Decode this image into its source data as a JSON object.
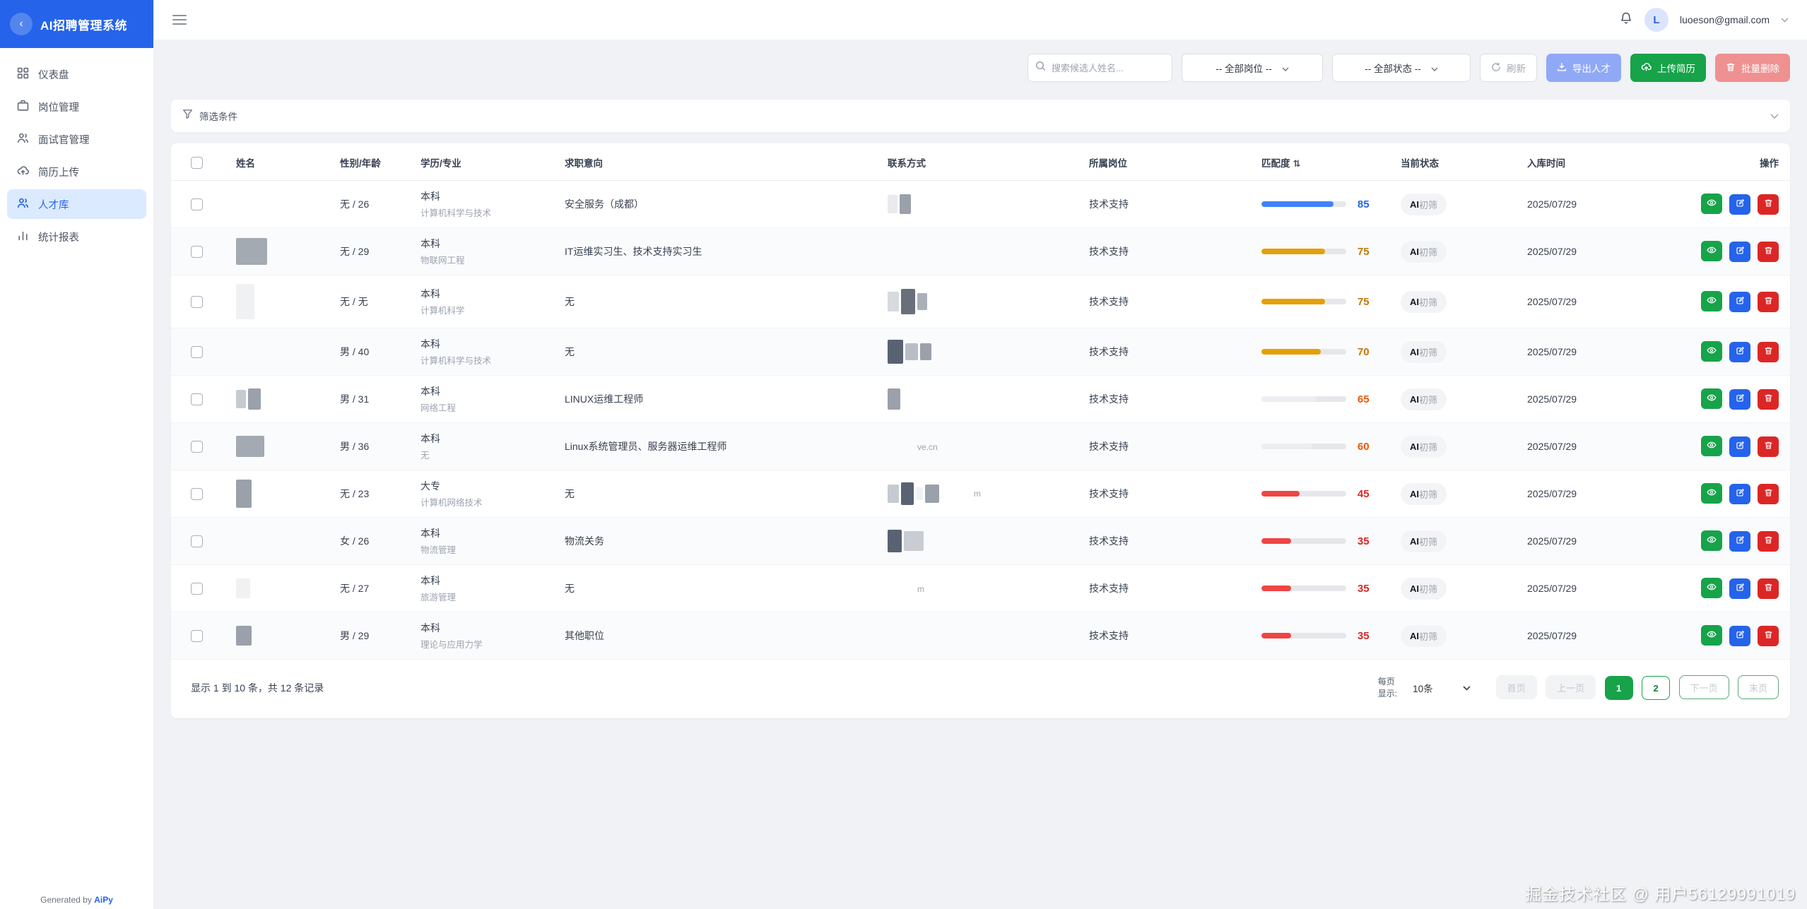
{
  "app": {
    "title": "AI招聘管理系统"
  },
  "topbar": {
    "avatar_initial": "L",
    "email": "luoeson@gmail.com"
  },
  "sidebar": {
    "items": [
      {
        "label": "仪表盘"
      },
      {
        "label": "岗位管理"
      },
      {
        "label": "面试官管理"
      },
      {
        "label": "简历上传"
      },
      {
        "label": "人才库",
        "active": true
      },
      {
        "label": "统计报表"
      }
    ],
    "footer_prefix": "Generated by ",
    "footer_link": "AiPy"
  },
  "toolbar": {
    "search_placeholder": "搜索候选人姓名...",
    "job_filter": "-- 全部岗位 --",
    "status_filter": "-- 全部状态 --",
    "refresh": "刷新",
    "export": "导出人才",
    "upload": "上传简历",
    "batch_delete": "批量删除"
  },
  "filter_bar": {
    "label": "筛选条件"
  },
  "table": {
    "columns": [
      "姓名",
      "性别/年龄",
      "学历/专业",
      "求职意向",
      "联系方式",
      "所属岗位",
      "匹配度",
      "当前状态",
      "入库时间",
      "操作"
    ],
    "sort_icon": "⇅",
    "rows": [
      {
        "gender_age": "无 / 26",
        "degree": "本科",
        "major": "计算机科学与技术",
        "intent": "安全服务（成都）",
        "post": "技术支持",
        "score": 85,
        "bar_pct": 85,
        "bar_color": "#3f83f8",
        "score_color": "#2563eb",
        "status_strong": "AI",
        "status_rest": "初筛",
        "date": "2025/07/29",
        "name_blocks": [],
        "contact_blocks": [
          [
            "#e8eaed",
            14,
            26
          ],
          [
            "#9aa1aa",
            16,
            28
          ]
        ],
        "contact_text": ""
      },
      {
        "gender_age": "无 / 29",
        "degree": "本科",
        "major": "物联网工程",
        "intent": "IT运维实习生、技术支持实习生",
        "post": "技术支持",
        "score": 75,
        "bar_pct": 75,
        "bar_color": "#e3a008",
        "score_color": "#c27803",
        "status_strong": "AI",
        "status_rest": "初筛",
        "date": "2025/07/29",
        "name_blocks": [
          [
            "#a4aab2",
            44,
            38
          ]
        ],
        "contact_blocks": [],
        "contact_text": ""
      },
      {
        "gender_age": "无 / 无",
        "degree": "本科",
        "major": "计算机科学",
        "intent": "无",
        "post": "技术支持",
        "score": 75,
        "bar_pct": 75,
        "bar_color": "#e3a008",
        "score_color": "#c27803",
        "status_strong": "AI",
        "status_rest": "初筛",
        "date": "2025/07/29",
        "name_blocks": [
          [
            "#f0f1f3",
            26,
            50
          ]
        ],
        "contact_blocks": [
          [
            "#d7dade",
            16,
            28
          ],
          [
            "#6a707b",
            20,
            36
          ],
          [
            "#aab0b7",
            14,
            24
          ]
        ],
        "contact_text": ""
      },
      {
        "gender_age": "男 / 40",
        "degree": "本科",
        "major": "计算机科学与技术",
        "intent": "无",
        "post": "技术支持",
        "score": 70,
        "bar_pct": 70,
        "bar_color": "#e3a008",
        "score_color": "#c27803",
        "status_strong": "AI",
        "status_rest": "初筛",
        "date": "2025/07/29",
        "name_blocks": [],
        "contact_blocks": [
          [
            "#596273",
            22,
            34
          ],
          [
            "#b9bec6",
            18,
            24
          ],
          [
            "#9aa1aa",
            16,
            24
          ]
        ],
        "contact_text": ""
      },
      {
        "gender_age": "男 / 31",
        "degree": "本科",
        "major": "网络工程",
        "intent": "LINUX运维工程师",
        "post": "技术支持",
        "score": 65,
        "bar_pct": 65,
        "bar_color": "#eceef1",
        "score_color": "#ea580c",
        "status_strong": "AI",
        "status_rest": "初筛",
        "date": "2025/07/29",
        "name_blocks": [
          [
            "#c6cad1",
            14,
            26
          ],
          [
            "#9aa1aa",
            18,
            30
          ]
        ],
        "contact_blocks": [
          [
            "#9aa1aa",
            18,
            30
          ]
        ],
        "contact_text": ""
      },
      {
        "gender_age": "男 / 36",
        "degree": "本科",
        "major": "无",
        "intent": "Linux系统管理员、服务器运维工程师",
        "post": "技术支持",
        "score": 60,
        "bar_pct": 60,
        "bar_color": "#eceef1",
        "score_color": "#ea580c",
        "status_strong": "AI",
        "status_rest": "初筛",
        "date": "2025/07/29",
        "name_blocks": [
          [
            "#a4aab2",
            40,
            30
          ]
        ],
        "contact_blocks": [],
        "contact_text": "ve.cn"
      },
      {
        "gender_age": "无 / 23",
        "degree": "大专",
        "major": "计算机网络技术",
        "intent": "无",
        "post": "技术支持",
        "score": 45,
        "bar_pct": 45,
        "bar_color": "#ef4444",
        "score_color": "#dc2626",
        "status_strong": "AI",
        "status_rest": "初筛",
        "date": "2025/07/29",
        "name_blocks": [
          [
            "#9aa1aa",
            22,
            40
          ]
        ],
        "contact_blocks": [
          [
            "#c6cad1",
            16,
            26
          ],
          [
            "#596273",
            18,
            32
          ],
          [
            "#f0f1f3",
            10,
            18
          ],
          [
            "#9aa1aa",
            20,
            26
          ]
        ],
        "contact_text": "m"
      },
      {
        "gender_age": "女 / 26",
        "degree": "本科",
        "major": "物流管理",
        "intent": "物流关务",
        "post": "技术支持",
        "score": 35,
        "bar_pct": 35,
        "bar_color": "#ef4444",
        "score_color": "#dc2626",
        "status_strong": "AI",
        "status_rest": "初筛",
        "date": "2025/07/29",
        "name_blocks": [],
        "contact_blocks": [
          [
            "#596273",
            20,
            32
          ],
          [
            "#c9cdd3",
            28,
            28
          ]
        ],
        "contact_text": ""
      },
      {
        "gender_age": "无 / 27",
        "degree": "本科",
        "major": "旅游管理",
        "intent": "无",
        "post": "技术支持",
        "score": 35,
        "bar_pct": 35,
        "bar_color": "#ef4444",
        "score_color": "#dc2626",
        "status_strong": "AI",
        "status_rest": "初筛",
        "date": "2025/07/29",
        "name_blocks": [
          [
            "#f0f1f3",
            20,
            28
          ]
        ],
        "contact_blocks": [],
        "contact_text": "m"
      },
      {
        "gender_age": "男 / 29",
        "degree": "本科",
        "major": "理论与应用力学",
        "intent": "其他职位",
        "post": "技术支持",
        "score": 35,
        "bar_pct": 35,
        "bar_color": "#ef4444",
        "score_color": "#dc2626",
        "status_strong": "AI",
        "status_rest": "初筛",
        "date": "2025/07/29",
        "name_blocks": [
          [
            "#9aa1aa",
            22,
            28
          ]
        ],
        "contact_blocks": [],
        "contact_text": ""
      }
    ]
  },
  "pagination": {
    "summary": "显示 1 到 10 条，共 12 条记录",
    "per_page_label_1": "每页",
    "per_page_label_2": "显示:",
    "per_page_value": "10条",
    "first": "首页",
    "prev": "上一页",
    "pages": [
      "1",
      "2"
    ],
    "next": "下一页",
    "last": "末页"
  },
  "watermark": "掘金技术社区 @ 用户56129991019",
  "colors": {
    "brand_blue": "#2563eb",
    "green": "#17a34a",
    "red": "#dc2626",
    "bar_blue": "#3f83f8",
    "bar_yellow": "#e3a008",
    "bar_red": "#ef4444",
    "num_orange": "#ea580c"
  }
}
